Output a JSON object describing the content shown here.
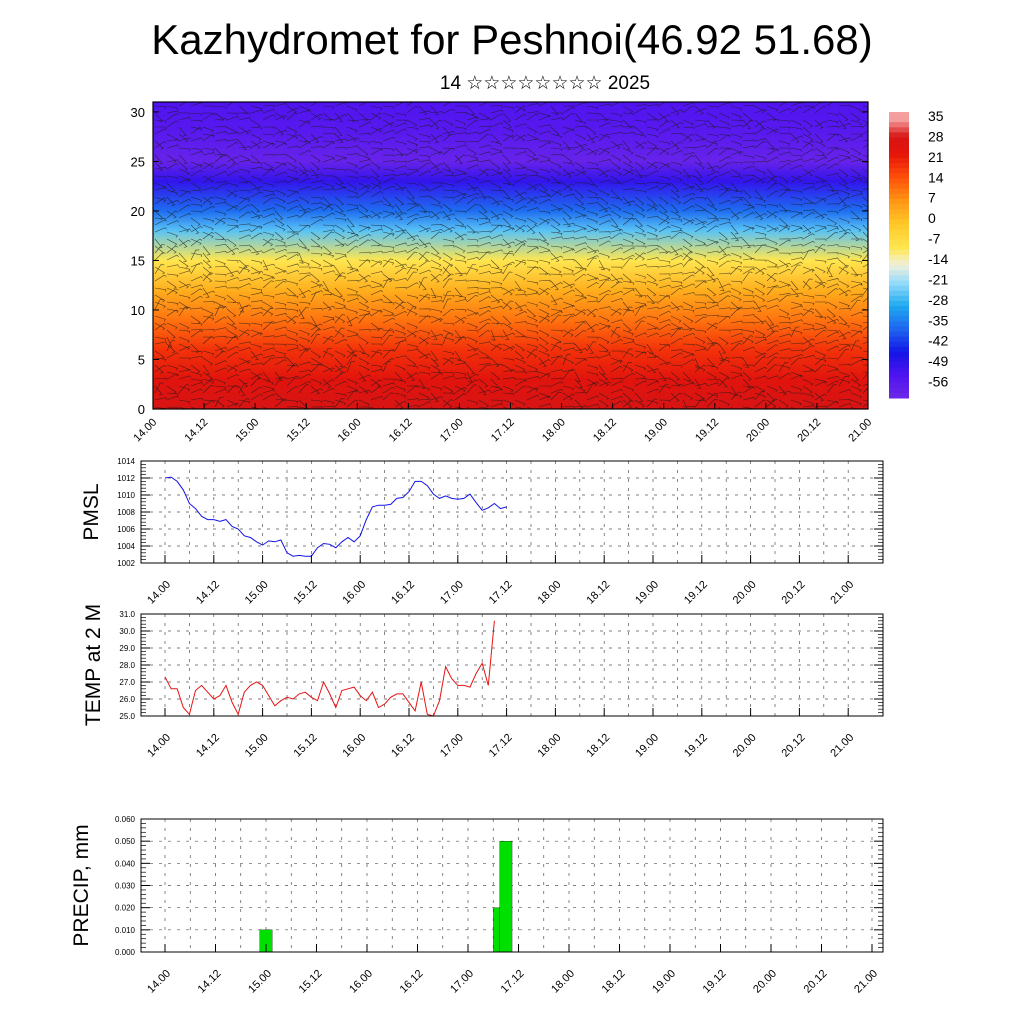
{
  "header": {
    "title": "Kazhydromet for Peshnoi(46.92 51.68)",
    "subtitle": "14 ☆☆☆☆☆☆☆☆ 2025"
  },
  "time_ticks": [
    "14.00",
    "14.12",
    "15.00",
    "15.12",
    "16.00",
    "16.12",
    "17.00",
    "17.12",
    "18.00",
    "18.12",
    "19.00",
    "19.12",
    "20.00",
    "20.12",
    "21.00"
  ],
  "chart_data": [
    {
      "type": "heatmap",
      "title": "Kazhydromet for Peshnoi(46.92 51.68)",
      "subtitle": "14 ☆☆☆☆☆☆☆☆ 2025",
      "x_ticks": [
        "14.00",
        "14.12",
        "15.00",
        "15.12",
        "16.00",
        "16.12",
        "17.00",
        "17.12",
        "18.00",
        "18.12",
        "19.00",
        "19.12",
        "20.00",
        "20.12",
        "21.00"
      ],
      "y_ticks": [
        0,
        5,
        10,
        15,
        20,
        25,
        30
      ],
      "ylim": [
        0,
        31
      ],
      "colorbar_labels": [
        35,
        28,
        21,
        14,
        7,
        0,
        -7,
        -14,
        -21,
        -28,
        -35,
        -42,
        -49,
        -56
      ],
      "temperature_profile": [
        {
          "level": 0,
          "value": 30
        },
        {
          "level": 3,
          "value": 26
        },
        {
          "level": 6,
          "value": 20
        },
        {
          "level": 9,
          "value": 12
        },
        {
          "level": 12,
          "value": 4
        },
        {
          "level": 15,
          "value": -8
        },
        {
          "level": 18,
          "value": -24
        },
        {
          "level": 20,
          "value": -35
        },
        {
          "level": 23,
          "value": -48
        },
        {
          "level": 25,
          "value": -58
        },
        {
          "level": 28,
          "value": -54
        },
        {
          "level": 31,
          "value": -52
        }
      ],
      "overlay": "wind barbs",
      "grid": false
    },
    {
      "type": "line",
      "ylabel": "PMSL",
      "ylim": [
        1002,
        1014
      ],
      "y_ticks": [
        1002,
        1004,
        1006,
        1008,
        1010,
        1012,
        1014
      ],
      "x_ticks": [
        "14.00",
        "14.12",
        "15.00",
        "15.12",
        "16.00",
        "16.12",
        "17.00",
        "17.12",
        "18.00",
        "18.12",
        "19.00",
        "19.12",
        "20.00",
        "20.12",
        "21.00"
      ],
      "grid": true,
      "color": "#1414e6",
      "x": [
        0.0,
        0.125,
        0.25,
        0.375,
        0.5,
        0.625,
        0.75,
        0.875,
        1.0,
        1.125,
        1.25,
        1.375,
        1.5,
        1.625,
        1.75,
        1.875,
        2.0,
        2.125,
        2.25,
        2.375,
        2.5,
        2.625,
        2.75,
        2.875,
        3.0,
        3.125,
        3.25,
        3.375,
        3.5,
        3.625,
        3.75,
        3.875,
        4.0,
        4.125,
        4.25,
        4.375,
        4.5,
        4.625,
        4.75,
        4.875,
        5.0,
        5.125,
        5.25,
        5.375,
        5.5,
        5.625,
        5.75,
        5.875,
        6.0,
        6.125,
        6.25,
        6.375,
        6.5,
        6.625,
        6.75,
        6.875,
        7.0
      ],
      "y": [
        1012.0,
        1012.1,
        1011.6,
        1010.6,
        1009.0,
        1008.4,
        1007.5,
        1007.1,
        1007.1,
        1006.9,
        1007.1,
        1006.3,
        1006.0,
        1005.2,
        1005.0,
        1004.5,
        1004.1,
        1004.6,
        1004.5,
        1004.7,
        1003.2,
        1002.8,
        1002.9,
        1002.8,
        1002.8,
        1003.8,
        1004.3,
        1004.2,
        1003.8,
        1004.5,
        1005.0,
        1004.5,
        1005.2,
        1007.1,
        1008.6,
        1008.8,
        1008.8,
        1008.9,
        1009.6,
        1009.7,
        1010.4,
        1011.6,
        1011.6,
        1011.1,
        1010.1,
        1009.6,
        1009.9,
        1009.6,
        1009.5,
        1009.6,
        1010.1,
        1009.1,
        1008.2,
        1008.5,
        1009.0,
        1008.4,
        1008.6
      ]
    },
    {
      "type": "line",
      "ylabel": "TEMP at 2 M",
      "ylim": [
        25.0,
        31.0
      ],
      "y_ticks": [
        "25.0",
        "26.0",
        "27.0",
        "28.0",
        "29.0",
        "30.0",
        "31.0"
      ],
      "x_ticks": [
        "14.00",
        "14.12",
        "15.00",
        "15.12",
        "16.00",
        "16.12",
        "17.00",
        "17.12",
        "18.00",
        "18.12",
        "19.00",
        "19.12",
        "20.00",
        "20.12",
        "21.00"
      ],
      "grid": true,
      "color": "#e61414",
      "x": [
        0.0,
        0.125,
        0.25,
        0.375,
        0.5,
        0.625,
        0.75,
        0.875,
        1.0,
        1.125,
        1.25,
        1.375,
        1.5,
        1.625,
        1.75,
        1.875,
        2.0,
        2.125,
        2.25,
        2.375,
        2.5,
        2.625,
        2.75,
        2.875,
        3.0,
        3.125,
        3.25,
        3.375,
        3.5,
        3.625,
        3.75,
        3.875,
        4.0,
        4.125,
        4.25,
        4.375,
        4.5,
        4.625,
        4.75,
        4.875,
        5.0,
        5.125,
        5.25,
        5.375,
        5.5,
        5.625,
        5.75,
        5.875,
        6.0,
        6.125,
        6.25,
        6.375,
        6.5,
        6.625,
        6.75
      ],
      "y": [
        27.3,
        26.6,
        26.6,
        25.5,
        25.1,
        26.5,
        26.8,
        26.4,
        26.0,
        26.2,
        26.8,
        25.8,
        25.1,
        26.4,
        26.8,
        27.0,
        26.8,
        26.2,
        25.6,
        25.9,
        26.1,
        26.0,
        26.3,
        26.4,
        26.1,
        25.9,
        27.0,
        26.3,
        25.5,
        26.5,
        26.6,
        26.7,
        26.2,
        25.9,
        26.4,
        25.5,
        25.7,
        26.1,
        26.3,
        26.3,
        25.8,
        25.3,
        27.0,
        25.1,
        25.0,
        25.9,
        27.9,
        27.2,
        26.8,
        26.8,
        26.7,
        27.5,
        28.1,
        26.8,
        30.6
      ]
    },
    {
      "type": "bar",
      "ylabel": "PRECIP, mm",
      "ylim": [
        0.0,
        0.06
      ],
      "y_ticks": [
        "0.000",
        "0.010",
        "0.020",
        "0.030",
        "0.040",
        "0.050",
        "0.060"
      ],
      "x_ticks": [
        "14.00",
        "14.12",
        "15.00",
        "15.12",
        "16.00",
        "16.12",
        "17.00",
        "17.12",
        "18.00",
        "18.12",
        "19.00",
        "19.12",
        "20.00",
        "20.12",
        "21.00"
      ],
      "grid": true,
      "color": "#00e000",
      "bars": [
        {
          "x": 2.0,
          "value": 0.01
        },
        {
          "x": 6.625,
          "value": 0.02
        },
        {
          "x": 6.75,
          "value": 0.05
        }
      ]
    }
  ]
}
